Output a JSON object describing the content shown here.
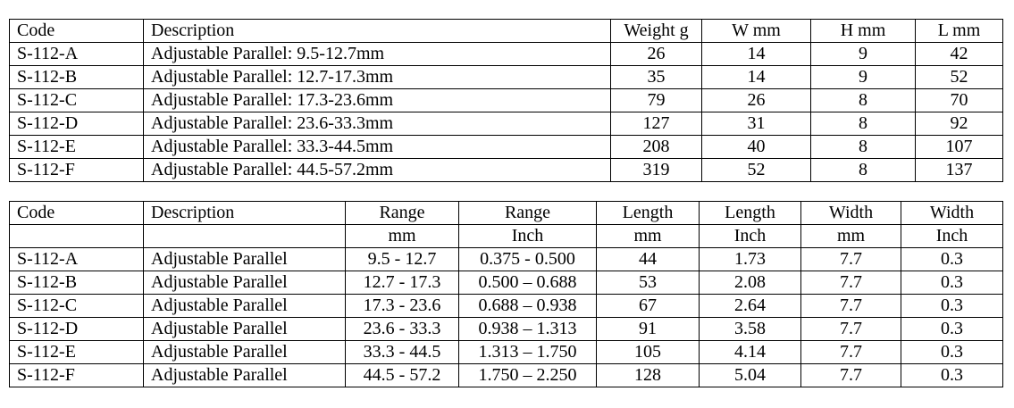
{
  "table1": {
    "header": [
      "Code",
      "Description",
      "Weight g",
      "W mm",
      "H mm",
      "L mm"
    ],
    "rows": [
      [
        "S-112-A",
        "Adjustable Parallel: 9.5-12.7mm",
        26,
        14,
        9,
        42
      ],
      [
        "S-112-B",
        "Adjustable Parallel: 12.7-17.3mm",
        35,
        14,
        9,
        52
      ],
      [
        "S-112-C",
        "Adjustable Parallel: 17.3-23.6mm",
        79,
        26,
        8,
        70
      ],
      [
        "S-112-D",
        "Adjustable Parallel: 23.6-33.3mm",
        127,
        31,
        8,
        92
      ],
      [
        "S-112-E",
        "Adjustable Parallel: 33.3-44.5mm",
        208,
        40,
        8,
        107
      ],
      [
        "S-112-F",
        "Adjustable Parallel: 44.5-57.2mm",
        319,
        52,
        8,
        137
      ]
    ]
  },
  "table2": {
    "header": [
      [
        "Code",
        "Description",
        "Range",
        "Range",
        "Length",
        "Length",
        "Width",
        "Width"
      ],
      [
        null,
        null,
        "mm",
        "Inch",
        "mm",
        "Inch",
        "mm",
        "Inch"
      ]
    ],
    "rows": [
      [
        "S-112-A",
        "Adjustable Parallel",
        "9.5 - 12.7",
        "0.375 - 0.500",
        44,
        1.73,
        7.7,
        0.3
      ],
      [
        "S-112-B",
        "Adjustable Parallel",
        "12.7 - 17.3",
        "0.500 – 0.688",
        53,
        2.08,
        7.7,
        0.3
      ],
      [
        "S-112-C",
        "Adjustable Parallel",
        "17.3 - 23.6",
        "0.688 – 0.938",
        67,
        2.64,
        7.7,
        0.3
      ],
      [
        "S-112-D",
        "Adjustable Parallel",
        "23.6 - 33.3",
        "0.938 – 1.313",
        91,
        3.58,
        7.7,
        0.3
      ],
      [
        "S-112-E",
        "Adjustable Parallel",
        "33.3 - 44.5",
        "1.313 – 1.750",
        105,
        4.14,
        7.7,
        0.3
      ],
      [
        "S-112-F",
        "Adjustable Parallel",
        "44.5 - 57.2",
        "1.750 – 2.250",
        128,
        5.04,
        7.7,
        0.3
      ]
    ]
  }
}
